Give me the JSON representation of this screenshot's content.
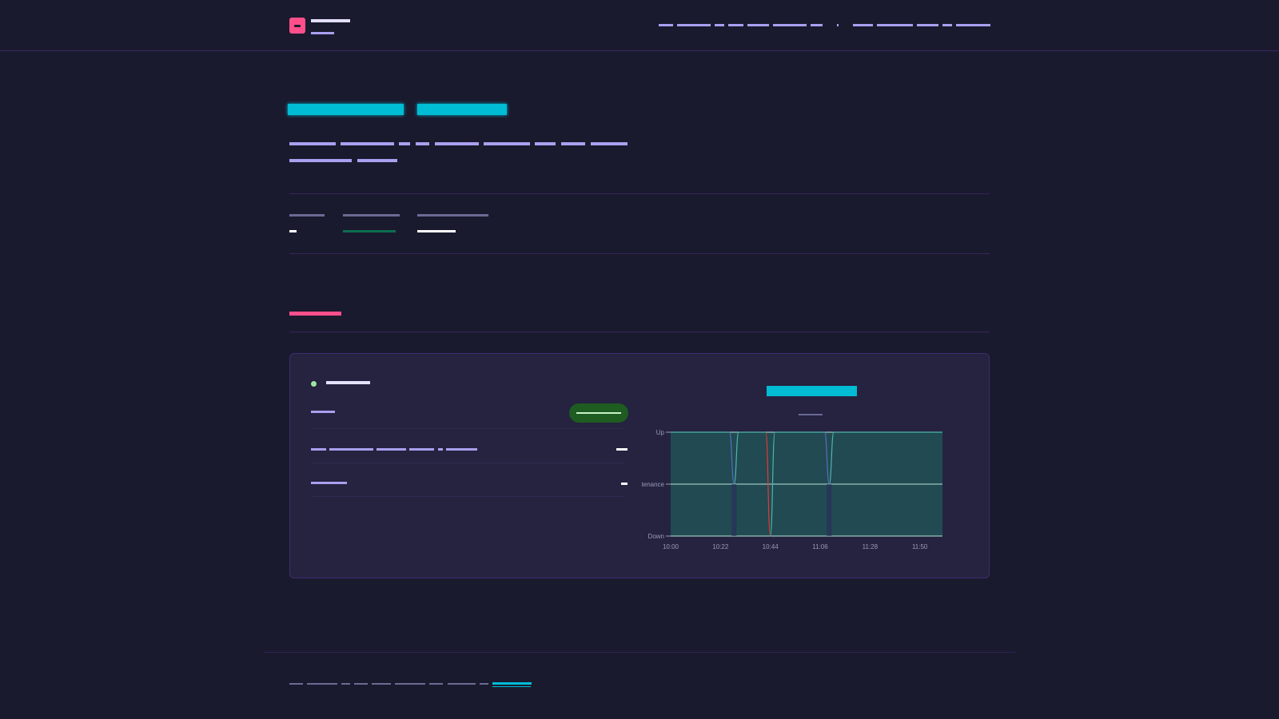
{
  "app": {
    "title": "",
    "subtitle": ""
  },
  "nav": {
    "items": [
      "",
      "",
      "",
      "",
      "",
      "",
      "",
      "",
      "",
      "",
      "",
      ""
    ]
  },
  "hero": {
    "title_part_1": "",
    "title_part_2": "",
    "description_line_1": "",
    "description_line_2": ""
  },
  "stats": [
    {
      "label": "",
      "value": ""
    },
    {
      "label": "",
      "value": ""
    },
    {
      "label": "",
      "value": ""
    }
  ],
  "section": {
    "title": ""
  },
  "monitor": {
    "name": "",
    "status_label": "",
    "status_value": "",
    "rows": [
      {
        "label": "",
        "value": ""
      },
      {
        "label": "",
        "value": ""
      }
    ],
    "colors": {
      "status_dot": "#9fe6a0",
      "status_pill": "#1e5c21"
    }
  },
  "chart_data": {
    "type": "line",
    "title": "",
    "subtitle": "",
    "y_categories": [
      "Down",
      "Maintenance",
      "Up"
    ],
    "x_ticks": [
      "10:00",
      "10:22",
      "10:44",
      "11:06",
      "11:28",
      "11:50"
    ],
    "xlim": [
      "10:00",
      "12:00"
    ],
    "series": [
      {
        "color": "#4db6ac",
        "points": [
          {
            "x": "10:00",
            "y": "Up"
          },
          {
            "x": "10:26",
            "y": "Up"
          },
          {
            "x": "10:28",
            "y": "Maintenance"
          },
          {
            "x": "10:30",
            "y": "Up"
          },
          {
            "x": "10:42",
            "y": "Up"
          },
          {
            "x": "10:44",
            "y": "Down"
          },
          {
            "x": "10:46",
            "y": "Up"
          },
          {
            "x": "11:08",
            "y": "Up"
          },
          {
            "x": "11:10",
            "y": "Maintenance"
          },
          {
            "x": "11:12",
            "y": "Up"
          },
          {
            "x": "12:00",
            "y": "Up"
          }
        ]
      }
    ],
    "colors": {
      "up": "#4db6ac",
      "maintenance": "#5c6bc0",
      "down": "#e53935",
      "fill": "#214a52"
    },
    "grid": true,
    "legend": "none"
  },
  "footer": {
    "items": [
      "",
      "",
      "",
      "",
      "",
      "",
      "",
      "",
      "",
      ""
    ],
    "link": ""
  },
  "colors": {
    "background": "#1a1a2e",
    "accent_pink": "#ff4f8b",
    "accent_cyan": "#00bcd4",
    "text_muted": "#a8a0f0"
  }
}
